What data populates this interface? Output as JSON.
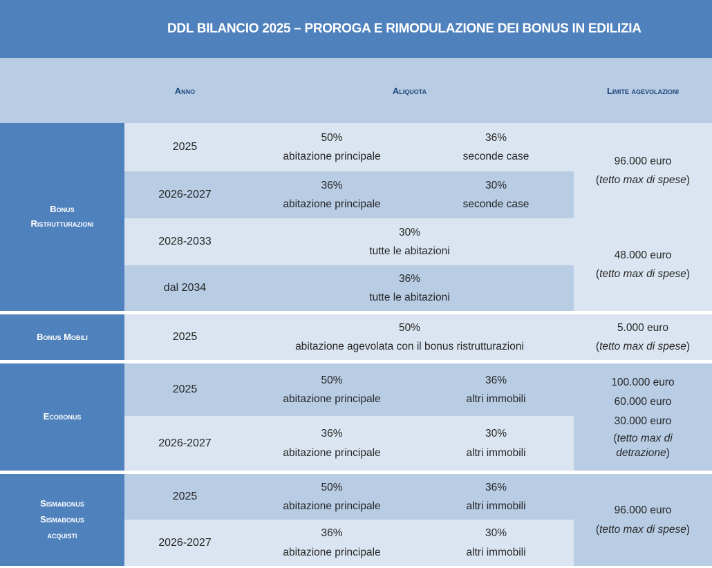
{
  "title": "DDL BILANCIO 2025 – PROROGA E RIMODULAZIONE DEI BONUS IN EDILIZIA",
  "headers": {
    "anno": "Anno",
    "aliquota": "Aliquota",
    "limite": "Limite agevolazioni"
  },
  "sections": {
    "ristrutturazioni": {
      "name_line1": "Bonus",
      "name_line2": "Ristrutturazioni",
      "rows": [
        {
          "anno": "2025",
          "a_pct": "50%",
          "a_desc": "abitazione principale",
          "b_pct": "36%",
          "b_desc": "seconde case"
        },
        {
          "anno": "2026-2027",
          "a_pct": "36%",
          "a_desc": "abitazione principale",
          "b_pct": "30%",
          "b_desc": "seconde case"
        },
        {
          "anno": "2028-2033",
          "pct": "30%",
          "desc": "tutte le abitazioni"
        },
        {
          "anno": "dal 2034",
          "pct": "36%",
          "desc": "tutte le abitazioni"
        }
      ],
      "limit1_value": "96.000 euro",
      "limit1_note": "tetto max di spese",
      "limit2_value": "48.000 euro",
      "limit2_note": "tetto max di spese"
    },
    "mobili": {
      "name": "Bonus Mobili",
      "anno": "2025",
      "pct": "50%",
      "desc": "abitazione agevolata con il bonus ristrutturazioni",
      "limit_value": "5.000 euro",
      "limit_note": "tetto max di spese"
    },
    "ecobonus": {
      "name": "Ecobonus",
      "rows": [
        {
          "anno": "2025",
          "a_pct": "50%",
          "a_desc": "abitazione principale",
          "b_pct": "36%",
          "b_desc": "altri immobili"
        },
        {
          "anno": "2026-2027",
          "a_pct": "36%",
          "a_desc": "abitazione principale",
          "b_pct": "30%",
          "b_desc": "altri immobili"
        }
      ],
      "limit_values": [
        "100.000 euro",
        "60.000 euro",
        "30.000 euro"
      ],
      "limit_note_line1": "tetto max di",
      "limit_note_line2": "detrazione"
    },
    "sismabonus": {
      "name_line1": "Sismabonus",
      "name_line2": "Sismabonus",
      "name_line3": "acquisti",
      "rows": [
        {
          "anno": "2025",
          "a_pct": "50%",
          "a_desc": "abitazione principale",
          "b_pct": "36%",
          "b_desc": "altri immobili"
        },
        {
          "anno": "2026-2027",
          "a_pct": "36%",
          "a_desc": "abitazione principale",
          "b_pct": "30%",
          "b_desc": "altri immobili"
        }
      ],
      "limit_value": "96.000 euro",
      "limit_note": "tetto max di spese"
    }
  },
  "colors": {
    "title_bg": "#4f81bd",
    "header_bg": "#b8cce4",
    "section_bg": "#4f81bd",
    "row_light": "#dbe5f1",
    "row_dark": "#b8cce4",
    "header_text": "#1f497d"
  }
}
